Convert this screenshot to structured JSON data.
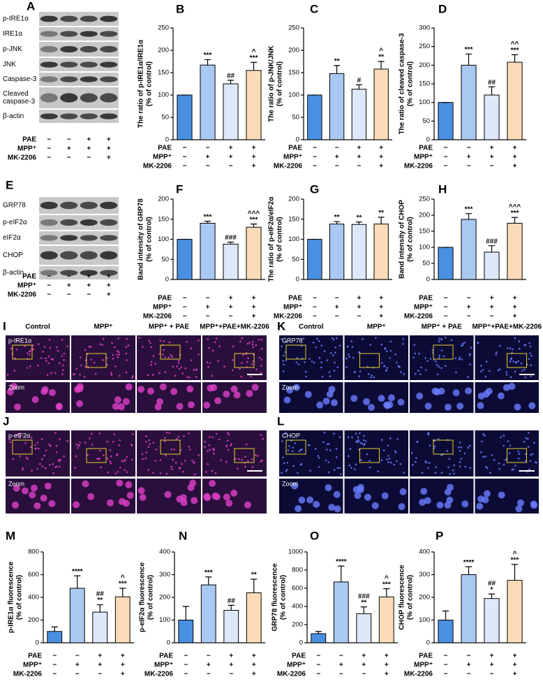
{
  "chart_data": [
    {
      "type": "bar",
      "panel": "B",
      "ylabel": [
        "The ratio of p-IRE1α/IRE1α",
        "(% of control)"
      ],
      "colors": [
        "#4a90e2",
        "#a9c9f2",
        "#dce9fb",
        "#fcdcb8"
      ],
      "values": [
        100,
        167,
        125,
        155
      ],
      "errors": [
        0,
        12,
        8,
        18
      ],
      "annotations": [
        [],
        [
          "***"
        ],
        [
          "##"
        ],
        [
          "^",
          "***"
        ]
      ],
      "ylim": [
        0,
        250
      ],
      "yticks": [
        0,
        50,
        100,
        150,
        200,
        250
      ],
      "treatments": [
        {
          "name": "PAE",
          "signs": [
            "−",
            "−",
            "+",
            "+"
          ]
        },
        {
          "name": "MPP⁺",
          "signs": [
            "−",
            "+",
            "+",
            "+"
          ]
        },
        {
          "name": "MK-2206",
          "signs": [
            "−",
            "−",
            "−",
            "+"
          ]
        }
      ]
    },
    {
      "type": "bar",
      "panel": "C",
      "ylabel": [
        "The ratio of p-JNK/JNK",
        "(% of control)"
      ],
      "colors": [
        "#4a90e2",
        "#a9c9f2",
        "#dce9fb",
        "#fcdcb8"
      ],
      "values": [
        100,
        148,
        113,
        158
      ],
      "errors": [
        0,
        18,
        10,
        17
      ],
      "annotations": [
        [],
        [
          "**"
        ],
        [
          "#"
        ],
        [
          "^",
          "**"
        ]
      ],
      "ylim": [
        0,
        250
      ],
      "yticks": [
        0,
        50,
        100,
        150,
        200,
        250
      ],
      "treatments": [
        {
          "name": "PAE",
          "signs": [
            "−",
            "−",
            "+",
            "+"
          ]
        },
        {
          "name": "MPP⁺",
          "signs": [
            "−",
            "+",
            "+",
            "+"
          ]
        },
        {
          "name": "MK-2206",
          "signs": [
            "−",
            "−",
            "−",
            "+"
          ]
        }
      ]
    },
    {
      "type": "bar",
      "panel": "D",
      "ylabel": [
        "The ratio of cleaved caspase-3",
        "(% of control)"
      ],
      "colors": [
        "#4a90e2",
        "#a9c9f2",
        "#dce9fb",
        "#fcdcb8"
      ],
      "values": [
        100,
        200,
        120,
        208
      ],
      "errors": [
        0,
        30,
        22,
        20
      ],
      "annotations": [
        [],
        [
          "***"
        ],
        [
          "##"
        ],
        [
          "^^",
          "***"
        ]
      ],
      "ylim": [
        0,
        300
      ],
      "yticks": [
        0,
        50,
        100,
        150,
        200,
        250,
        300
      ],
      "treatments": [
        {
          "name": "PAE",
          "signs": [
            "−",
            "−",
            "+",
            "+"
          ]
        },
        {
          "name": "MPP⁺",
          "signs": [
            "−",
            "+",
            "+",
            "+"
          ]
        },
        {
          "name": "MK-2206",
          "signs": [
            "−",
            "−",
            "−",
            "+"
          ]
        }
      ]
    },
    {
      "type": "bar",
      "panel": "F",
      "ylabel": [
        "Band intensity of GRP78",
        "(% of control)"
      ],
      "colors": [
        "#4a90e2",
        "#a9c9f2",
        "#dce9fb",
        "#fcdcb8"
      ],
      "values": [
        100,
        140,
        88,
        130
      ],
      "errors": [
        0,
        5,
        5,
        8
      ],
      "annotations": [
        [],
        [
          "***"
        ],
        [
          "###"
        ],
        [
          "^^^",
          "***"
        ]
      ],
      "ylim": [
        0,
        200
      ],
      "yticks": [
        0,
        50,
        100,
        150,
        200
      ],
      "treatments": [
        {
          "name": "PAE",
          "signs": [
            "−",
            "−",
            "+",
            "+"
          ]
        },
        {
          "name": "MPP⁺",
          "signs": [
            "−",
            "+",
            "+",
            "+"
          ]
        },
        {
          "name": "MK-2206",
          "signs": [
            "−",
            "−",
            "−",
            "+"
          ]
        }
      ]
    },
    {
      "type": "bar",
      "panel": "G",
      "ylabel": [
        "The ratio of p-eIF2α/eIF2α",
        "(% of control)"
      ],
      "colors": [
        "#4a90e2",
        "#a9c9f2",
        "#dce9fb",
        "#fcdcb8"
      ],
      "values": [
        100,
        138,
        137,
        138
      ],
      "errors": [
        0,
        6,
        6,
        17
      ],
      "annotations": [
        [],
        [
          "**"
        ],
        [
          "**"
        ],
        [
          "**"
        ]
      ],
      "ylim": [
        0,
        200
      ],
      "yticks": [
        0,
        50,
        100,
        150,
        200
      ],
      "treatments": [
        {
          "name": "PAE",
          "signs": [
            "−",
            "−",
            "+",
            "+"
          ]
        },
        {
          "name": "MPP⁺",
          "signs": [
            "−",
            "+",
            "+",
            "+"
          ]
        },
        {
          "name": "MK-2206",
          "signs": [
            "−",
            "−",
            "−",
            "+"
          ]
        }
      ]
    },
    {
      "type": "bar",
      "panel": "H",
      "ylabel": [
        "Band intensity of CHOP",
        "(% of control)"
      ],
      "colors": [
        "#4a90e2",
        "#a9c9f2",
        "#dce9fb",
        "#fcdcb8"
      ],
      "values": [
        100,
        187,
        85,
        175
      ],
      "errors": [
        0,
        18,
        20,
        18
      ],
      "annotations": [
        [],
        [
          "***"
        ],
        [
          "###"
        ],
        [
          "^^^",
          "***"
        ]
      ],
      "ylim": [
        0,
        250
      ],
      "yticks": [
        0,
        50,
        100,
        150,
        200,
        250
      ],
      "treatments": [
        {
          "name": "PAE",
          "signs": [
            "−",
            "−",
            "+",
            "+"
          ]
        },
        {
          "name": "MPP⁺",
          "signs": [
            "−",
            "+",
            "+",
            "+"
          ]
        },
        {
          "name": "MK-2206",
          "signs": [
            "−",
            "−",
            "−",
            "+"
          ]
        }
      ]
    },
    {
      "type": "bar",
      "panel": "M",
      "ylabel": [
        "p-IRE1α fluorescence",
        "(% of control)"
      ],
      "colors": [
        "#4a90e2",
        "#a9c9f2",
        "#dce9fb",
        "#fcdcb8"
      ],
      "values": [
        100,
        480,
        270,
        405
      ],
      "errors": [
        40,
        110,
        65,
        75
      ],
      "annotations": [
        [],
        [
          "****"
        ],
        [
          "##",
          "**"
        ],
        [
          "^",
          "***"
        ]
      ],
      "ylim": [
        0,
        800
      ],
      "yticks": [
        0,
        200,
        400,
        600,
        800
      ],
      "treatments": [
        {
          "name": "PAE",
          "signs": [
            "−",
            "−",
            "+",
            "+"
          ]
        },
        {
          "name": "MPP⁺",
          "signs": [
            "−",
            "+",
            "+",
            "+"
          ]
        },
        {
          "name": "MK-2206",
          "signs": [
            "−",
            "−",
            "−",
            "+"
          ]
        }
      ]
    },
    {
      "type": "bar",
      "panel": "N",
      "ylabel": [
        "p-eIF2α fluorescence",
        "(% of control)"
      ],
      "colors": [
        "#4a90e2",
        "#a9c9f2",
        "#dce9fb",
        "#fcdcb8"
      ],
      "values": [
        100,
        255,
        143,
        220
      ],
      "errors": [
        60,
        35,
        22,
        60
      ],
      "annotations": [
        [],
        [
          "***"
        ],
        [
          "##"
        ],
        [
          "**"
        ]
      ],
      "ylim": [
        0,
        400
      ],
      "yticks": [
        0,
        100,
        200,
        300,
        400
      ],
      "treatments": [
        {
          "name": "PAE",
          "signs": [
            "−",
            "−",
            "+",
            "+"
          ]
        },
        {
          "name": "MPP⁺",
          "signs": [
            "−",
            "+",
            "+",
            "+"
          ]
        },
        {
          "name": "MK-2206",
          "signs": [
            "−",
            "−",
            "−",
            "+"
          ]
        }
      ]
    },
    {
      "type": "bar",
      "panel": "O",
      "ylabel": [
        "GRP78 fluorescence",
        "(% of control)"
      ],
      "colors": [
        "#4a90e2",
        "#a9c9f2",
        "#dce9fb",
        "#fcdcb8"
      ],
      "values": [
        100,
        670,
        320,
        505
      ],
      "errors": [
        25,
        175,
        75,
        90
      ],
      "annotations": [
        [],
        [
          "****"
        ],
        [
          "###",
          "**"
        ],
        [
          "^",
          "***"
        ]
      ],
      "ylim": [
        0,
        1000
      ],
      "yticks": [
        0,
        200,
        400,
        600,
        800,
        1000
      ],
      "treatments": [
        {
          "name": "PAE",
          "signs": [
            "−",
            "−",
            "+",
            "+"
          ]
        },
        {
          "name": "MPP⁺",
          "signs": [
            "−",
            "+",
            "+",
            "+"
          ]
        },
        {
          "name": "MK-2206",
          "signs": [
            "−",
            "−",
            "−",
            "+"
          ]
        }
      ]
    },
    {
      "type": "bar",
      "panel": "P",
      "ylabel": [
        "CHOP fluorescence",
        "(% of control)"
      ],
      "colors": [
        "#4a90e2",
        "#a9c9f2",
        "#dce9fb",
        "#fcdcb8"
      ],
      "values": [
        100,
        300,
        195,
        275
      ],
      "errors": [
        40,
        35,
        20,
        70
      ],
      "annotations": [
        [],
        [
          "****"
        ],
        [
          "##",
          "*"
        ],
        [
          "^",
          "***"
        ]
      ],
      "ylim": [
        0,
        400
      ],
      "yticks": [
        0,
        100,
        200,
        300,
        400
      ],
      "treatments": [
        {
          "name": "PAE",
          "signs": [
            "−",
            "−",
            "+",
            "+"
          ]
        },
        {
          "name": "MPP⁺",
          "signs": [
            "−",
            "+",
            "+",
            "+"
          ]
        },
        {
          "name": "MK-2206",
          "signs": [
            "−",
            "−",
            "−",
            "+"
          ]
        }
      ]
    }
  ],
  "blots": [
    {
      "panel": "A",
      "rows": [
        [
          "p-IRE1α"
        ],
        [
          "IRE1α"
        ],
        [
          "p-JNK"
        ],
        [
          "JNK"
        ],
        [
          "Caspase-3"
        ],
        [
          "Cleaved",
          "caspase-3"
        ],
        [
          "β-actin"
        ]
      ],
      "treatments": [
        {
          "name": "PAE",
          "signs": [
            "−",
            "−",
            "+",
            "+"
          ]
        },
        {
          "name": "MPP⁺",
          "signs": [
            "−",
            "+",
            "+",
            "+"
          ]
        },
        {
          "name": "MK-2206",
          "signs": [
            "−",
            "−",
            "−",
            "+"
          ]
        }
      ]
    },
    {
      "panel": "E",
      "rows": [
        [
          "GRP78"
        ],
        [
          "p-eIF2α"
        ],
        [
          "eIF2α"
        ],
        [
          "CHOP"
        ],
        [
          "β-actin"
        ]
      ],
      "treatments": [
        {
          "name": "PAE",
          "signs": [
            "−",
            "−",
            "+",
            "+"
          ]
        },
        {
          "name": "MPP⁺",
          "signs": [
            "−",
            "+",
            "+",
            "+"
          ]
        },
        {
          "name": "MK-2206",
          "signs": [
            "−",
            "−",
            "−",
            "+"
          ]
        }
      ]
    }
  ],
  "micrographs": [
    {
      "panel": "I",
      "columns": [
        "Control",
        "MPP⁺",
        "MPP⁺ + PAE",
        "MPP⁺+PAE+MK-2206"
      ],
      "marker": "p-IRE1α",
      "zoom": "Zoom"
    },
    {
      "panel": "J",
      "marker": "p-eIF2α",
      "zoom": "Zoom"
    },
    {
      "panel": "K",
      "columns": [
        "Control",
        "MPP⁺",
        "MPP⁺ + PAE",
        "MPP⁺+PAE+MK-2206"
      ],
      "marker": "GRP78",
      "zoom": "Zoom"
    },
    {
      "panel": "L",
      "marker": "CHOP",
      "zoom": "Zoom"
    }
  ]
}
